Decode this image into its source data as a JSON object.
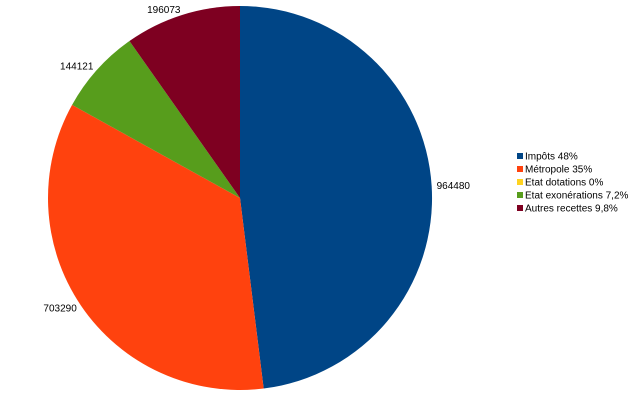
{
  "chart_data": {
    "type": "pie",
    "title": "",
    "start_angle_deg": 0,
    "direction": "clockwise",
    "legend_position": "right",
    "slices": [
      {
        "legend": "Impôts 48%",
        "value": 964480,
        "label": "964480",
        "color": "#004586"
      },
      {
        "legend": "Métropole 35%",
        "value": 703290,
        "label": "703290",
        "color": "#ff420e"
      },
      {
        "legend": "Etat dotations 0%",
        "value": 0,
        "label": "",
        "color": "#ffd320"
      },
      {
        "legend": "Etat exonérations 7,2%",
        "value": 144121,
        "label": "144121",
        "color": "#579d1c"
      },
      {
        "legend": "Autres recettes 9,8%",
        "value": 196073,
        "label": "196073",
        "color": "#7e0021"
      }
    ]
  }
}
